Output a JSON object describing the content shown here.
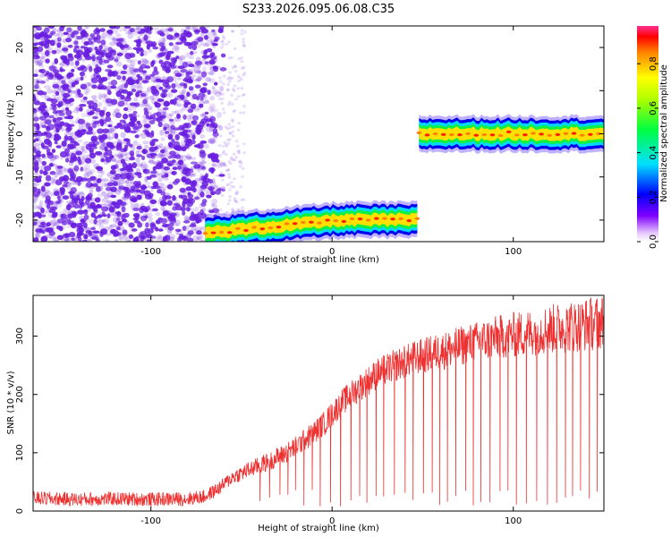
{
  "figure": {
    "title": "S233.2026.095.06.08.C35"
  },
  "colors": {
    "trace": "#ee3030",
    "scatter": "#6a1fe0",
    "axis": "#000000"
  },
  "chart_data": [
    {
      "type": "heatmap",
      "xlabel": "Height of straight line (km)",
      "ylabel": "Frequency (Hz)",
      "xlim": [
        -165,
        150
      ],
      "ylim": [
        -25,
        25
      ],
      "xticks": [
        "-100",
        "0",
        "100"
      ],
      "xtick_values": [
        -100,
        0,
        100
      ],
      "yticks": [
        "-20",
        "-10",
        "0",
        "10",
        "20"
      ],
      "ytick_values": [
        -20,
        -10,
        0,
        10,
        20
      ],
      "colorbar": {
        "label": "Normalized spectral amplitude",
        "ticks": [
          "0.0",
          "0.2",
          "0.4",
          "0.6",
          "0.8"
        ],
        "tick_values": [
          0.0,
          0.2,
          0.4,
          0.6,
          0.8
        ],
        "range": [
          0,
          0.97
        ],
        "colormap": "rainbow (magenta-blue-cyan-green-yellow-red)"
      },
      "noise_region_x": [
        -165,
        -60
      ],
      "tone_segments": [
        {
          "x": [
            -70,
            48
          ],
          "frequency_start": -23,
          "frequency_end": -20
        },
        {
          "x": [
            48,
            150
          ],
          "frequency_start": 0,
          "frequency_end": 0
        }
      ]
    },
    {
      "type": "line",
      "xlabel": "Height of straight line (km)",
      "ylabel": "SNR (10 * v/v)",
      "xlim": [
        -165,
        150
      ],
      "ylim": [
        0,
        370
      ],
      "xticks": [
        "-100",
        "0",
        "100"
      ],
      "xtick_values": [
        -100,
        0,
        100
      ],
      "yticks": [
        "0",
        "100",
        "200",
        "300"
      ],
      "ytick_values": [
        0,
        100,
        200,
        300
      ],
      "series": [
        {
          "x": [
            -165,
            -140,
            -120,
            -100,
            -80,
            -70,
            -62,
            -55,
            -45,
            -35,
            -25,
            -15,
            -5,
            5,
            15,
            25,
            35,
            45,
            55,
            65,
            75,
            85,
            95,
            105,
            115,
            125,
            135,
            145,
            150
          ],
          "values": [
            22,
            20,
            21,
            20,
            21,
            25,
            40,
            58,
            72,
            85,
            100,
            122,
            148,
            185,
            212,
            236,
            250,
            262,
            270,
            278,
            286,
            294,
            300,
            304,
            310,
            314,
            318,
            322,
            325
          ],
          "noise_amplitude": 12,
          "dropout_start_x": -40,
          "dropout_spacing": 5
        }
      ]
    }
  ]
}
